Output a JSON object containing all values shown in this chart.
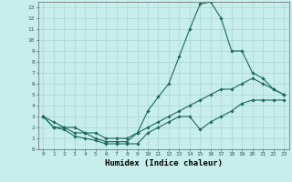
{
  "title": "",
  "xlabel": "Humidex (Indice chaleur)",
  "background_color": "#c8eded",
  "grid_color": "#a8d4d4",
  "line_color": "#1a6b5a",
  "xlim": [
    -0.5,
    23.5
  ],
  "ylim": [
    0,
    13.5
  ],
  "xticks": [
    0,
    1,
    2,
    3,
    4,
    5,
    6,
    7,
    8,
    9,
    10,
    11,
    12,
    13,
    14,
    15,
    16,
    17,
    18,
    19,
    20,
    21,
    22,
    23
  ],
  "yticks": [
    0,
    1,
    2,
    3,
    4,
    5,
    6,
    7,
    8,
    9,
    10,
    11,
    12,
    13
  ],
  "line1_x": [
    0,
    1,
    2,
    3,
    4,
    5,
    6,
    7,
    8,
    9,
    10,
    11,
    12,
    13,
    14,
    15,
    16,
    17,
    18,
    19,
    20,
    21,
    22,
    23
  ],
  "line1_y": [
    3,
    2,
    2,
    2,
    1.5,
    1,
    0.7,
    0.7,
    0.7,
    1.5,
    3.5,
    4.8,
    6,
    8.5,
    11,
    13.3,
    13.5,
    12,
    9,
    9,
    7,
    6.5,
    5.5,
    5
  ],
  "line2_x": [
    0,
    1,
    2,
    3,
    4,
    5,
    6,
    7,
    8,
    9,
    10,
    11,
    12,
    13,
    14,
    15,
    16,
    17,
    18,
    19,
    20,
    21,
    22,
    23
  ],
  "line2_y": [
    3,
    2.5,
    2,
    1.5,
    1.5,
    1.5,
    1,
    1,
    1,
    1.5,
    2,
    2.5,
    3,
    3.5,
    4,
    4.5,
    5,
    5.5,
    5.5,
    6,
    6.5,
    6,
    5.5,
    5
  ],
  "line3_x": [
    0,
    1,
    2,
    3,
    4,
    5,
    6,
    7,
    8,
    9,
    10,
    11,
    12,
    13,
    14,
    15,
    16,
    17,
    18,
    19,
    20,
    21,
    22,
    23
  ],
  "line3_y": [
    3,
    2,
    1.8,
    1.2,
    1,
    0.8,
    0.5,
    0.5,
    0.5,
    0.5,
    1.5,
    2,
    2.5,
    3,
    3,
    1.8,
    2.5,
    3,
    3.5,
    4.2,
    4.5,
    4.5,
    4.5,
    4.5
  ]
}
